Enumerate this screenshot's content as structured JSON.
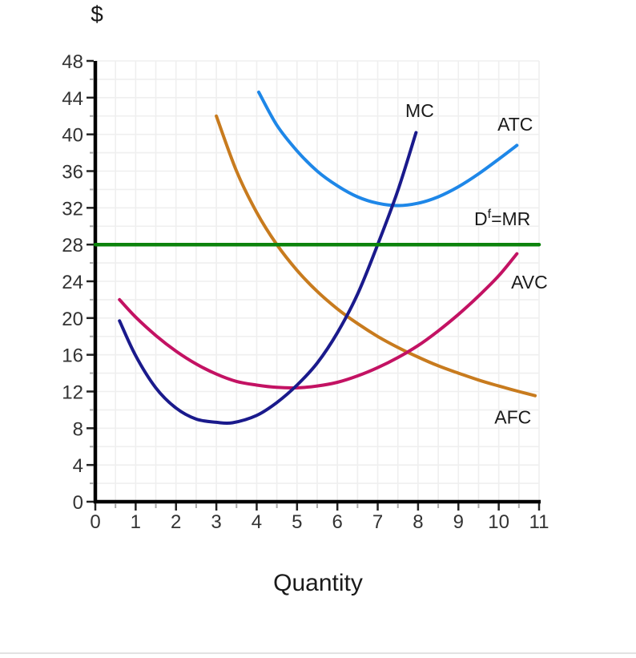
{
  "figure": {
    "y_axis_title": "$",
    "x_axis_title": "Quantity"
  },
  "styles": {
    "background": "#ffffff",
    "grid_color": "#efefef",
    "axis_color": "#000000",
    "major_tick_color": "#222222",
    "minor_tick_color": "#a8a8a8",
    "tick_label_color": "#333333",
    "curve_label_color": "#1a1a1a",
    "divider_color": "#e2e2e2"
  },
  "chart_data": {
    "type": "line",
    "title": "",
    "xlabel": "Quantity",
    "ylabel": "$",
    "xlim": [
      0,
      11
    ],
    "ylim": [
      0,
      48
    ],
    "x_major_ticks": [
      0,
      1,
      2,
      3,
      4,
      5,
      6,
      7,
      8,
      9,
      10,
      11
    ],
    "x_minor_tick_step": 0.5,
    "y_major_ticks": [
      0,
      4,
      8,
      12,
      16,
      20,
      24,
      28,
      32,
      36,
      40,
      44,
      48
    ],
    "y_minor_tick_step": 2,
    "grid": {
      "show": true,
      "x_step": 0.5,
      "y_step": 2
    },
    "legend": "labels-on-curves",
    "series": [
      {
        "id": "afc",
        "name": "AFC",
        "color": "#C87B1E",
        "width": 4,
        "label": {
          "x": 10.35,
          "y": 9.2,
          "parts": [
            {
              "t": "AFC"
            }
          ]
        },
        "points": [
          [
            3.0,
            42.0
          ],
          [
            3.5,
            36.0
          ],
          [
            4.0,
            31.5
          ],
          [
            4.5,
            28.0
          ],
          [
            5.0,
            25.2
          ],
          [
            5.5,
            22.9
          ],
          [
            6.0,
            21.0
          ],
          [
            6.5,
            19.4
          ],
          [
            7.0,
            18.0
          ],
          [
            7.5,
            16.8
          ],
          [
            8.0,
            15.75
          ],
          [
            8.5,
            14.8
          ],
          [
            9.0,
            14.0
          ],
          [
            9.5,
            13.25
          ],
          [
            10.0,
            12.6
          ],
          [
            10.5,
            12.0
          ],
          [
            10.9,
            11.55
          ]
        ]
      },
      {
        "id": "avc",
        "name": "AVC",
        "color": "#C31263",
        "width": 4,
        "label": {
          "x": 10.76,
          "y": 23.9,
          "parts": [
            {
              "t": "AVC"
            }
          ]
        },
        "points": [
          [
            0.6,
            22.0
          ],
          [
            1.0,
            20.1
          ],
          [
            1.5,
            18.1
          ],
          [
            2.0,
            16.4
          ],
          [
            2.5,
            15.0
          ],
          [
            3.0,
            13.9
          ],
          [
            3.5,
            13.1
          ],
          [
            4.0,
            12.7
          ],
          [
            4.5,
            12.45
          ],
          [
            5.0,
            12.4
          ],
          [
            5.5,
            12.6
          ],
          [
            6.0,
            13.0
          ],
          [
            6.5,
            13.7
          ],
          [
            7.0,
            14.6
          ],
          [
            7.5,
            15.7
          ],
          [
            8.0,
            17.0
          ],
          [
            8.5,
            18.6
          ],
          [
            9.0,
            20.4
          ],
          [
            9.5,
            22.4
          ],
          [
            10.0,
            24.6
          ],
          [
            10.45,
            27.0
          ]
        ]
      },
      {
        "id": "atc",
        "name": "ATC",
        "color": "#1E87E8",
        "width": 4,
        "label": {
          "x": 10.41,
          "y": 41.1,
          "parts": [
            {
              "t": "ATC"
            }
          ]
        },
        "points": [
          [
            4.05,
            44.6
          ],
          [
            4.5,
            41.0
          ],
          [
            5.0,
            38.2
          ],
          [
            5.5,
            36.0
          ],
          [
            6.0,
            34.4
          ],
          [
            6.5,
            33.2
          ],
          [
            7.0,
            32.5
          ],
          [
            7.5,
            32.25
          ],
          [
            8.0,
            32.5
          ],
          [
            8.5,
            33.2
          ],
          [
            9.0,
            34.3
          ],
          [
            9.5,
            35.7
          ],
          [
            10.0,
            37.3
          ],
          [
            10.45,
            38.8
          ]
        ]
      },
      {
        "id": "mc",
        "name": "MC",
        "color": "#1A1A8C",
        "width": 4,
        "label": {
          "x": 8.04,
          "y": 42.6,
          "parts": [
            {
              "t": "MC"
            }
          ]
        },
        "points": [
          [
            0.6,
            19.7
          ],
          [
            1.0,
            15.9
          ],
          [
            1.5,
            12.4
          ],
          [
            2.0,
            10.2
          ],
          [
            2.5,
            9.0
          ],
          [
            3.0,
            8.65
          ],
          [
            3.4,
            8.6
          ],
          [
            4.0,
            9.4
          ],
          [
            4.5,
            10.8
          ],
          [
            5.0,
            12.7
          ],
          [
            5.5,
            15.1
          ],
          [
            6.0,
            18.4
          ],
          [
            6.5,
            22.6
          ],
          [
            7.0,
            28.0
          ],
          [
            7.5,
            33.9
          ],
          [
            7.95,
            40.2
          ]
        ]
      },
      {
        "id": "demand-mr",
        "name": "Df=MR",
        "color": "#0C830C",
        "width": 4.5,
        "straight": true,
        "label": {
          "x": 10.09,
          "y": 30.8,
          "parts": [
            {
              "t": "D"
            },
            {
              "t": "f",
              "sup": true
            },
            {
              "t": "=MR"
            }
          ]
        },
        "points": [
          [
            0,
            28
          ],
          [
            11,
            28
          ]
        ]
      }
    ]
  }
}
